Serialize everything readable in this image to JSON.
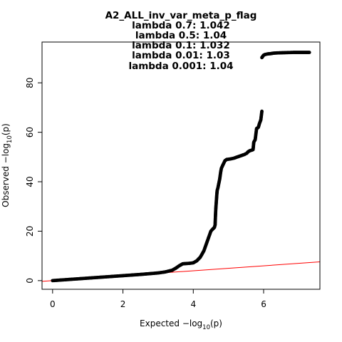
{
  "chart_data": {
    "type": "scatter",
    "title_lines": [
      "A2_ALL_inv_var_meta_p_flag",
      "lambda 0.7: 1.042",
      "lambda 0.5: 1.04",
      "lambda 0.1: 1.032",
      "lambda 0.01: 1.03",
      "lambda 0.001: 1.04"
    ],
    "xlabel": {
      "prefix": "Expected  −log",
      "sub": "10",
      "suffix": "(p)"
    },
    "ylabel": {
      "prefix": "Observed  −log",
      "sub": "10",
      "suffix": "(p)"
    },
    "xlim": [
      -0.3,
      7.6
    ],
    "ylim": [
      -3.5,
      96.5
    ],
    "x_ticks": [
      0,
      2,
      4,
      6
    ],
    "y_ticks": [
      0,
      20,
      40,
      60,
      80
    ],
    "reference_line": {
      "color": "#ff0000",
      "points": [
        [
          -0.3,
          -0.3
        ],
        [
          7.6,
          7.6
        ]
      ]
    },
    "point_color": "#000000",
    "series": [
      {
        "points": [
          [
            0.0,
            0.0
          ],
          [
            0.3,
            0.3
          ],
          [
            0.6,
            0.6
          ],
          [
            1.0,
            1.0
          ],
          [
            1.5,
            1.5
          ],
          [
            2.0,
            2.0
          ],
          [
            2.5,
            2.5
          ],
          [
            3.0,
            3.1
          ],
          [
            3.2,
            3.5
          ],
          [
            3.4,
            4.2
          ],
          [
            3.5,
            5.0
          ],
          [
            3.6,
            6.0
          ],
          [
            3.7,
            6.8
          ],
          [
            3.9,
            7.0
          ],
          [
            4.0,
            7.2
          ],
          [
            4.1,
            8.0
          ],
          [
            4.2,
            9.5
          ],
          [
            4.3,
            12.0
          ],
          [
            4.35,
            14.0
          ],
          [
            4.4,
            16.0
          ],
          [
            4.45,
            18.0
          ],
          [
            4.5,
            20.0
          ],
          [
            4.55,
            20.8
          ],
          [
            4.6,
            21.5
          ],
          [
            4.62,
            22.5
          ],
          [
            4.63,
            26.0
          ],
          [
            4.64,
            29.0
          ],
          [
            4.65,
            31.0
          ],
          [
            4.66,
            33.0
          ],
          [
            4.67,
            35.0
          ],
          [
            4.68,
            36.5
          ],
          [
            4.7,
            37.5
          ],
          [
            4.75,
            41.0
          ],
          [
            4.78,
            44.0
          ],
          [
            4.8,
            45.5
          ],
          [
            4.85,
            47.0
          ],
          [
            4.9,
            48.5
          ],
          [
            4.95,
            49.0
          ],
          [
            5.05,
            49.2
          ],
          [
            5.15,
            49.5
          ],
          [
            5.25,
            50.0
          ],
          [
            5.35,
            50.5
          ],
          [
            5.45,
            51.0
          ],
          [
            5.52,
            51.5
          ],
          [
            5.55,
            52.0
          ],
          [
            5.6,
            52.5
          ],
          [
            5.65,
            52.7
          ],
          [
            5.7,
            53.0
          ],
          [
            5.72,
            56.0
          ],
          [
            5.76,
            57.0
          ],
          [
            5.8,
            61.5
          ],
          [
            5.85,
            62.0
          ],
          [
            5.88,
            63.5
          ],
          [
            5.92,
            65.0
          ],
          [
            5.95,
            68.5
          ],
          [
            5.95,
            90.2
          ],
          [
            6.0,
            91.2
          ],
          [
            6.05,
            91.5
          ],
          [
            6.12,
            91.7
          ],
          [
            6.2,
            91.8
          ],
          [
            6.28,
            92.0
          ],
          [
            6.4,
            92.1
          ],
          [
            6.6,
            92.2
          ],
          [
            6.85,
            92.3
          ],
          [
            7.3,
            92.3
          ]
        ]
      }
    ]
  }
}
